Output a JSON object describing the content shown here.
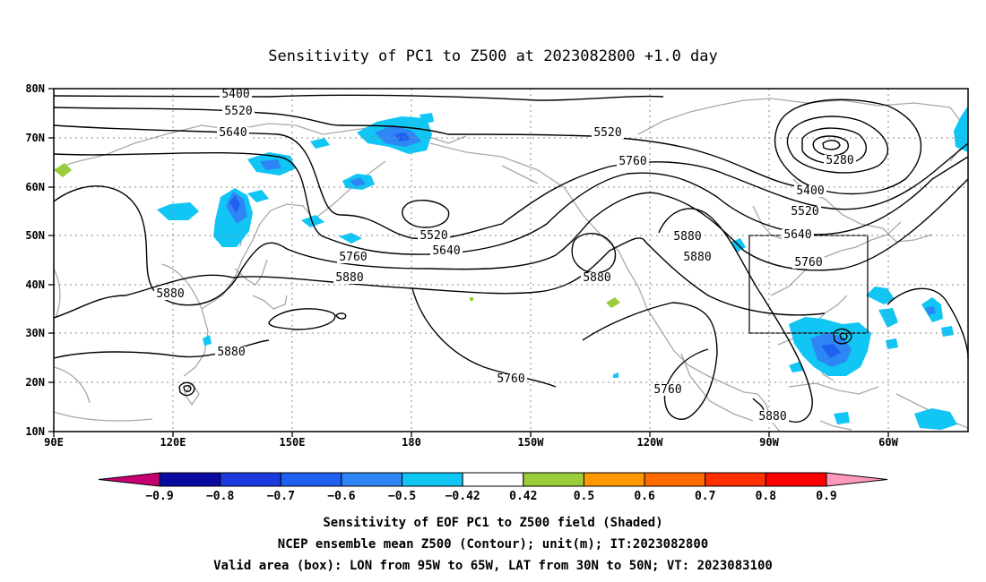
{
  "title": "Sensitivity of PC1 to Z500 at 2023082800 +1.0 day",
  "lat_labels": [
    "80N",
    "70N",
    "60N",
    "50N",
    "40N",
    "30N",
    "20N",
    "10N"
  ],
  "lon_labels": [
    "90E",
    "120E",
    "150E",
    "180",
    "150W",
    "120W",
    "90W",
    "60W"
  ],
  "contour_labels": [
    "5400",
    "5520",
    "5640",
    "5520",
    "5760",
    "5280",
    "5400",
    "5520",
    "5640",
    "5760",
    "5520",
    "5640",
    "5760",
    "5880",
    "5880",
    "5880",
    "5760",
    "5760",
    "5880",
    "5880",
    "5880",
    "5880",
    "5880"
  ],
  "colorbar": {
    "labels": [
      "−0.9",
      "−0.8",
      "−0.7",
      "−0.6",
      "−0.5",
      "−0.42",
      "0.42",
      "0.5",
      "0.6",
      "0.7",
      "0.8",
      "0.9"
    ],
    "colors": [
      "#c6006f",
      "#0a0aa0",
      "#1a3ae0",
      "#2060f0",
      "#2e86f6",
      "#11c6f4",
      "#ffffff",
      "#9bcc3a",
      "#ff9900",
      "#ff6a00",
      "#ff2f00",
      "#ff0000",
      "#ff99bb"
    ]
  },
  "captions": [
    "Sensitivity of EOF PC1 to Z500 field (Shaded)",
    "NCEP ensemble mean Z500 (Contour); unit(m); IT:2023082800",
    "Valid area (box): LON from 95W to 65W, LAT from 30N to 50N; VT: 2023083100"
  ],
  "valid_box": {
    "lon_min": -95,
    "lon_max": -65,
    "lat_min": 30,
    "lat_max": 50
  },
  "map_extent": {
    "lon_min": 90,
    "lon_max": 320,
    "lat_min": 10,
    "lat_max": 80
  }
}
